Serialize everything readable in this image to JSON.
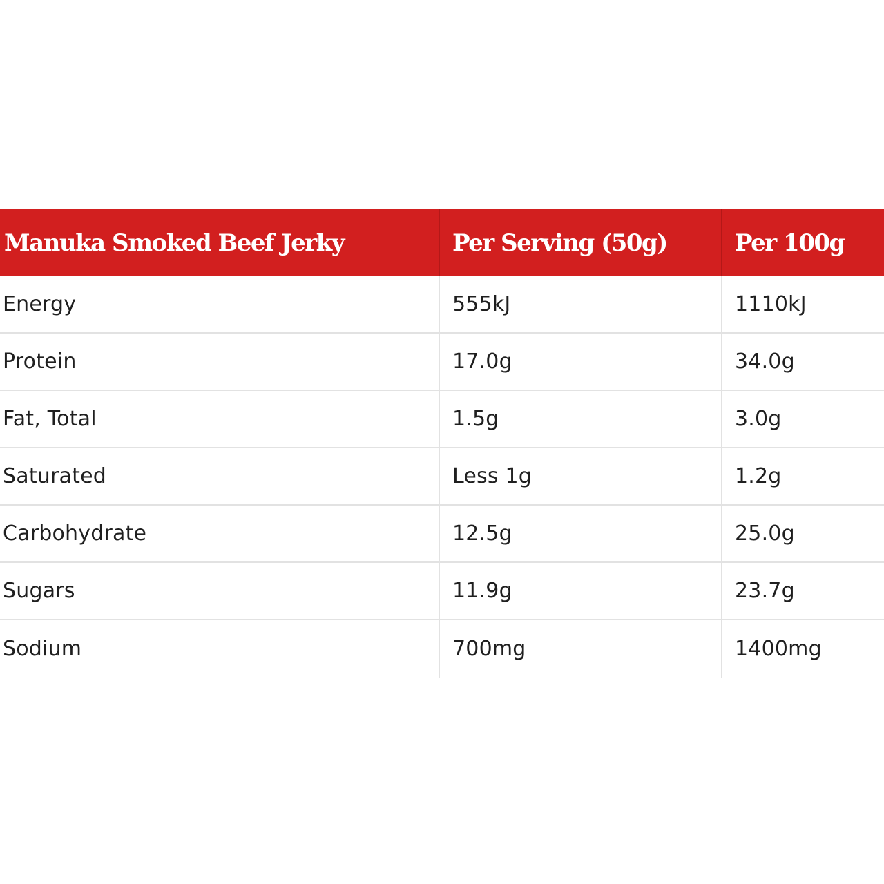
{
  "table": {
    "headers": [
      "Manuka Smoked Beef Jerky",
      "Per Serving (50g)",
      "Per 100g"
    ],
    "rows": [
      [
        "Energy",
        "555kJ",
        "1110kJ"
      ],
      [
        "Protein",
        "17.0g",
        "34.0g"
      ],
      [
        "Fat, Total",
        "1.5g",
        "3.0g"
      ],
      [
        "Saturated",
        "Less 1g",
        "1.2g"
      ],
      [
        "Carbohydrate",
        "12.5g",
        "25.0g"
      ],
      [
        "Sugars",
        "11.9g",
        "23.7g"
      ],
      [
        "Sodium",
        "700mg",
        "1400mg"
      ]
    ]
  },
  "colors": {
    "header_background": "#d21f1f",
    "header_text": "#ffffff",
    "body_text": "#1f1f1f",
    "divider": "#e2e2e2"
  }
}
